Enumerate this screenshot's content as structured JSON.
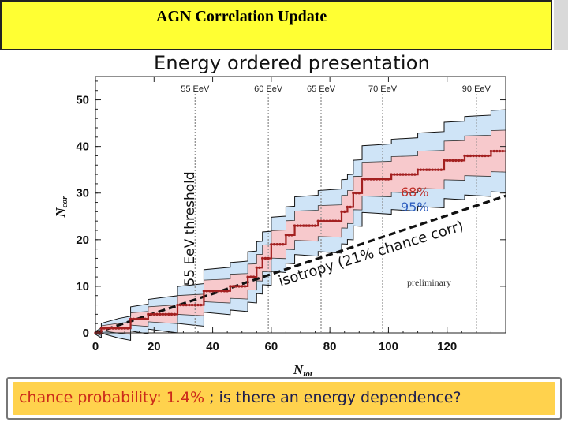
{
  "slide": {
    "title": "AGN Correlation Update",
    "bottom_text_red": "chance probability: 1.4%",
    "bottom_text_blue": " ; is there an energy dependence?"
  },
  "chart_data": {
    "type": "line",
    "title": "Energy ordered presentation",
    "xlabel": "N",
    "xlabel_sub": "tot",
    "ylabel": "N",
    "ylabel_sub": "cor",
    "xlim": [
      0,
      140
    ],
    "ylim": [
      0,
      55
    ],
    "xticks": [
      0,
      20,
      40,
      60,
      80,
      100,
      120
    ],
    "yticks": [
      0,
      10,
      20,
      30,
      40,
      50
    ],
    "energy_markers": [
      {
        "x": 34,
        "label": "55 EeV"
      },
      {
        "x": 59,
        "label": "60 EeV"
      },
      {
        "x": 77,
        "label": "65 EeV"
      },
      {
        "x": 98,
        "label": "70 EeV"
      },
      {
        "x": 130,
        "label": "90 EeV"
      }
    ],
    "threshold_label": "55 EeV threshold",
    "isotropy_label": "isotropy (21% chance corr)",
    "isotropy_line": {
      "x0": 0,
      "y0": 0,
      "x1": 140,
      "y1": 29.4
    },
    "band68_label": "68%",
    "band95_label": "95%",
    "preliminary_label": "preliminary",
    "colors": {
      "data": "#a32020",
      "band68": "#f7c9cc",
      "band95": "#cfe4f7",
      "isotropy": "#111111",
      "marker": "#888888"
    },
    "series": [
      {
        "name": "Ncor",
        "x": [
          0,
          2,
          8,
          12,
          16,
          18,
          24,
          28,
          34,
          37,
          42,
          46,
          50,
          52,
          55,
          57,
          60,
          63,
          65,
          68,
          73,
          76,
          80,
          84,
          86,
          88,
          91,
          96,
          101,
          106,
          110,
          115,
          119,
          122,
          126,
          130,
          135,
          140
        ],
        "y": [
          0,
          1,
          1,
          3,
          3,
          4,
          4,
          6,
          6,
          9,
          9,
          10,
          10,
          12,
          14,
          16,
          19,
          19,
          21,
          23,
          23,
          24,
          24,
          26,
          27,
          30,
          33,
          33,
          34,
          34,
          35,
          35,
          37,
          37,
          38,
          38,
          39,
          39
        ]
      }
    ]
  }
}
